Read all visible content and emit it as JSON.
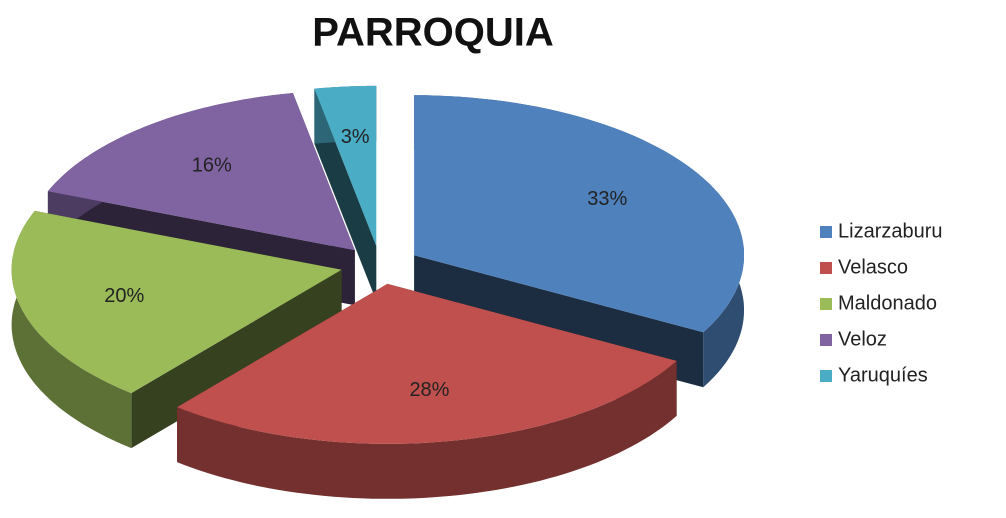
{
  "chart_data": {
    "type": "pie3d",
    "title": "PARROQUIA",
    "categories": [
      "Lizarzaburu",
      "Velasco",
      "Maldonado",
      "Veloz",
      "Yaruquíes"
    ],
    "values": [
      33,
      28,
      20,
      16,
      3
    ],
    "value_labels": [
      "33%",
      "28%",
      "20%",
      "16%",
      "3%"
    ],
    "colors": [
      "#4f81bd",
      "#c0504d",
      "#9bbb59",
      "#8064a2",
      "#4bacc6"
    ],
    "legend": "right"
  }
}
